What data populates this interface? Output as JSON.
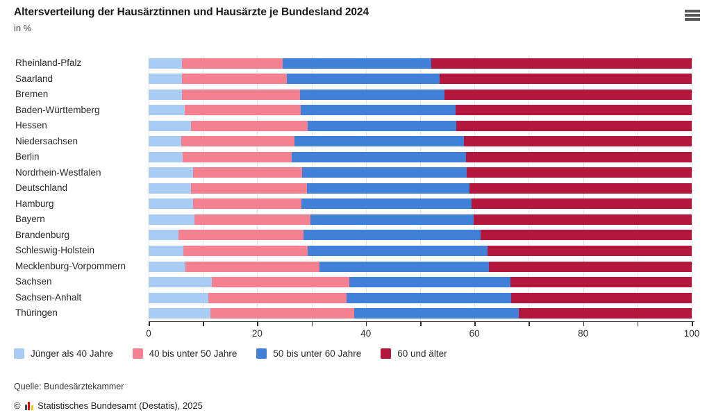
{
  "header": {
    "title": "Altersverteilung der Hausärztinnen und Hausärzte je Bundesland 2024",
    "subtitle": "in %",
    "menu_icon": "hamburger-menu"
  },
  "chart_data": {
    "type": "bar",
    "orientation": "horizontal",
    "stacked": true,
    "title": "Altersverteilung der Hausärztinnen und Hausärzte je Bundesland 2024",
    "unit": "in %",
    "xlim": [
      0,
      100
    ],
    "x_ticks_labeled": [
      0,
      20,
      40,
      60,
      80,
      100
    ],
    "x_minor_tick_step": 10,
    "grid": true,
    "legend_position": "bottom",
    "series": [
      "Jünger als 40 Jahre",
      "40 bis unter 50 Jahre",
      "50 bis unter 60 Jahre",
      "60 und älter"
    ],
    "series_colors": [
      "#A9CCF4",
      "#F5808F",
      "#4180D9",
      "#B3173B"
    ],
    "rows": [
      {
        "label": "Rheinland-Pfalz",
        "values": [
          6.2,
          18.5,
          27.3,
          48.0
        ]
      },
      {
        "label": "Saarland",
        "values": [
          6.2,
          19.2,
          28.2,
          46.4
        ]
      },
      {
        "label": "Bremen",
        "values": [
          6.2,
          21.7,
          26.6,
          45.5
        ]
      },
      {
        "label": "Baden-Württemberg",
        "values": [
          6.7,
          21.3,
          28.5,
          43.5
        ]
      },
      {
        "label": "Hessen",
        "values": [
          7.8,
          21.5,
          27.4,
          43.3
        ]
      },
      {
        "label": "Niedersachsen",
        "values": [
          6.0,
          20.8,
          31.2,
          42.0
        ]
      },
      {
        "label": "Berlin",
        "values": [
          6.3,
          20.1,
          32.0,
          41.6
        ]
      },
      {
        "label": "Nordrhein-Westfalen",
        "values": [
          8.2,
          20.1,
          30.3,
          41.4
        ]
      },
      {
        "label": "Deutschland",
        "values": [
          7.8,
          21.4,
          29.9,
          40.9
        ]
      },
      {
        "label": "Hamburg",
        "values": [
          8.2,
          19.9,
          31.4,
          40.5
        ]
      },
      {
        "label": "Bayern",
        "values": [
          8.4,
          21.4,
          30.1,
          40.1
        ]
      },
      {
        "label": "Brandenburg",
        "values": [
          5.5,
          23.0,
          32.6,
          38.9
        ]
      },
      {
        "label": "Schleswig-Holstein",
        "values": [
          6.4,
          22.9,
          33.1,
          37.6
        ]
      },
      {
        "label": "Mecklenburg-Vorpommern",
        "values": [
          6.8,
          24.7,
          31.1,
          37.4
        ]
      },
      {
        "label": "Sachsen",
        "values": [
          11.7,
          25.2,
          29.7,
          33.4
        ]
      },
      {
        "label": "Sachsen-Anhalt",
        "values": [
          11.0,
          25.4,
          30.4,
          33.2
        ]
      },
      {
        "label": "Thüringen",
        "values": [
          11.4,
          26.5,
          30.2,
          31.9
        ]
      }
    ]
  },
  "footer": {
    "source": "Quelle: Bundesärztekammer",
    "copyright_symbol": "©",
    "copyright": "Statistisches Bundesamt (Destatis), 2025",
    "logo_colors": [
      "#4d4d4d",
      "#e30613",
      "#ffcc00"
    ]
  },
  "colors": {
    "background": "#ffffff",
    "axis": "#2e2e2e",
    "grid": "#e4e4e4",
    "text": "#2b2b2b"
  }
}
